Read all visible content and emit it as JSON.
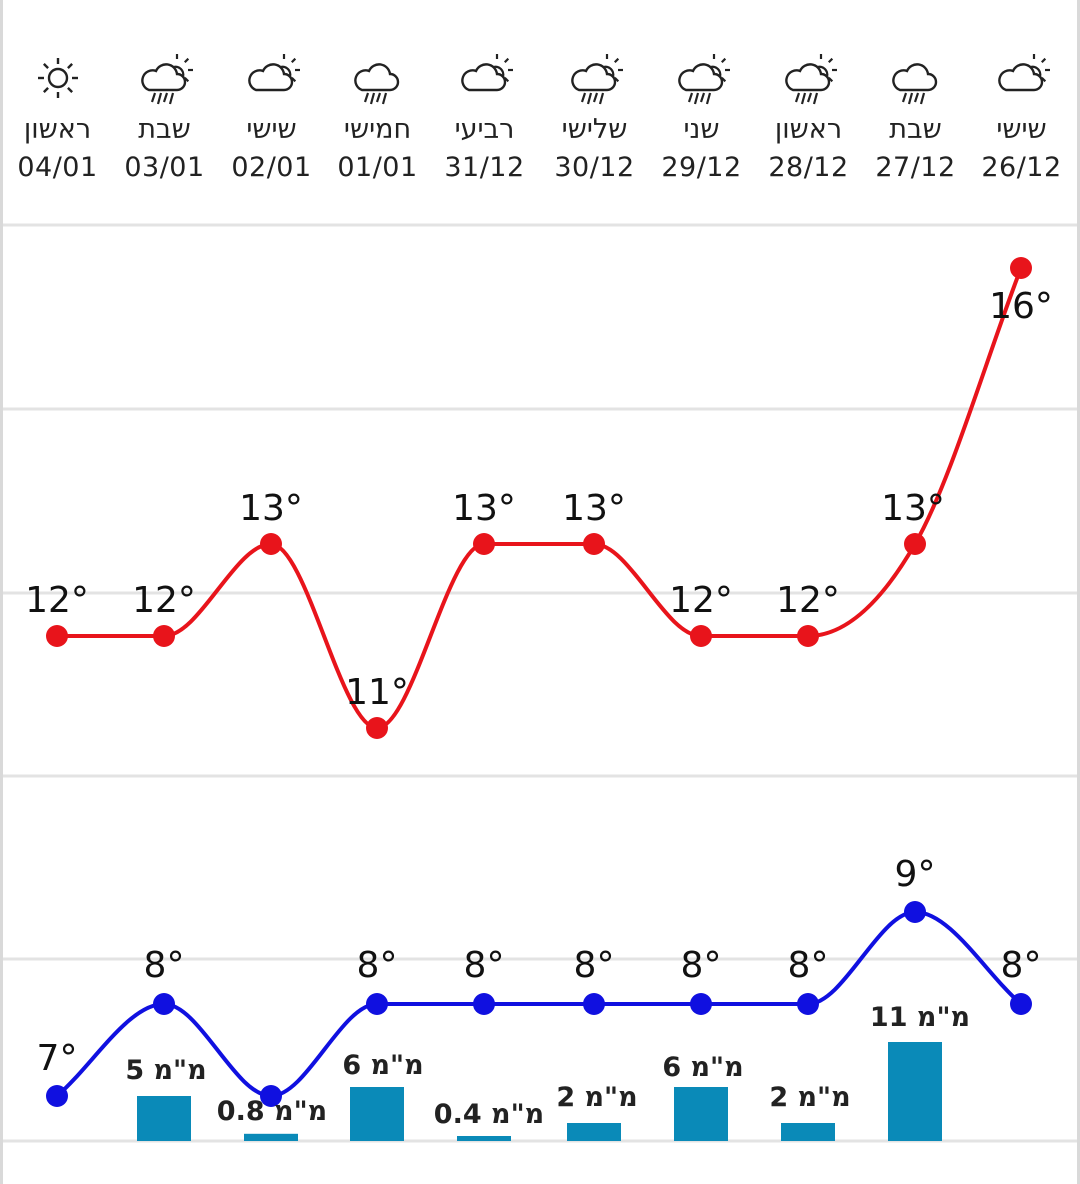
{
  "colors": {
    "high_line": "#e8141b",
    "low_line": "#1010e0",
    "rain_bar": "#0a8ab8",
    "grid": "#e3e3e3"
  },
  "days": [
    {
      "name": "ראשון",
      "date": "04/01",
      "icon": "sun-icon"
    },
    {
      "name": "שבת",
      "date": "03/01",
      "icon": "rain-sun-cloud-icon"
    },
    {
      "name": "שישי",
      "date": "02/01",
      "icon": "partly-cloudy-icon"
    },
    {
      "name": "חמישי",
      "date": "01/01",
      "icon": "rain-cloud-icon"
    },
    {
      "name": "רביעי",
      "date": "31/12",
      "icon": "partly-cloudy-icon"
    },
    {
      "name": "שלישי",
      "date": "30/12",
      "icon": "rain-sun-cloud-icon"
    },
    {
      "name": "שני",
      "date": "29/12",
      "icon": "rain-sun-cloud-icon"
    },
    {
      "name": "ראשון",
      "date": "28/12",
      "icon": "rain-sun-cloud-icon"
    },
    {
      "name": "שבת",
      "date": "27/12",
      "icon": "rain-cloud-icon"
    },
    {
      "name": "שישי",
      "date": "26/12",
      "icon": "partly-cloudy-icon"
    }
  ],
  "chart_data": {
    "type": "line",
    "x": [
      "04/01",
      "03/01",
      "02/01",
      "01/01",
      "31/12",
      "30/12",
      "29/12",
      "28/12",
      "27/12",
      "26/12"
    ],
    "series": [
      {
        "values": [
          12,
          12,
          13,
          11,
          13,
          13,
          12,
          12,
          13,
          16
        ],
        "labels": [
          "12°",
          "12°",
          "13°",
          "11°",
          "13°",
          "13°",
          "12°",
          "12°",
          "13°",
          "16°"
        ]
      },
      {
        "values": [
          7,
          8,
          7,
          8,
          8,
          8,
          8,
          8,
          9,
          8
        ],
        "labels": [
          "7°",
          "8°",
          "",
          "8°",
          "8°",
          "8°",
          "8°",
          "8°",
          "9°",
          "8°"
        ]
      }
    ],
    "precipitation": {
      "type": "bar",
      "values": [
        null,
        5,
        0.8,
        6,
        0.4,
        2,
        6,
        2,
        11,
        null
      ],
      "labels": [
        "",
        "5 מ\"מ",
        "0.8 מ\"מ",
        "6 מ\"מ",
        "0.4 מ\"מ",
        "2 מ\"מ",
        "6 מ\"מ",
        "2 מ\"מ",
        "11 מ\"מ",
        ""
      ]
    },
    "ylim": [
      6,
      17
    ],
    "grid": true
  }
}
